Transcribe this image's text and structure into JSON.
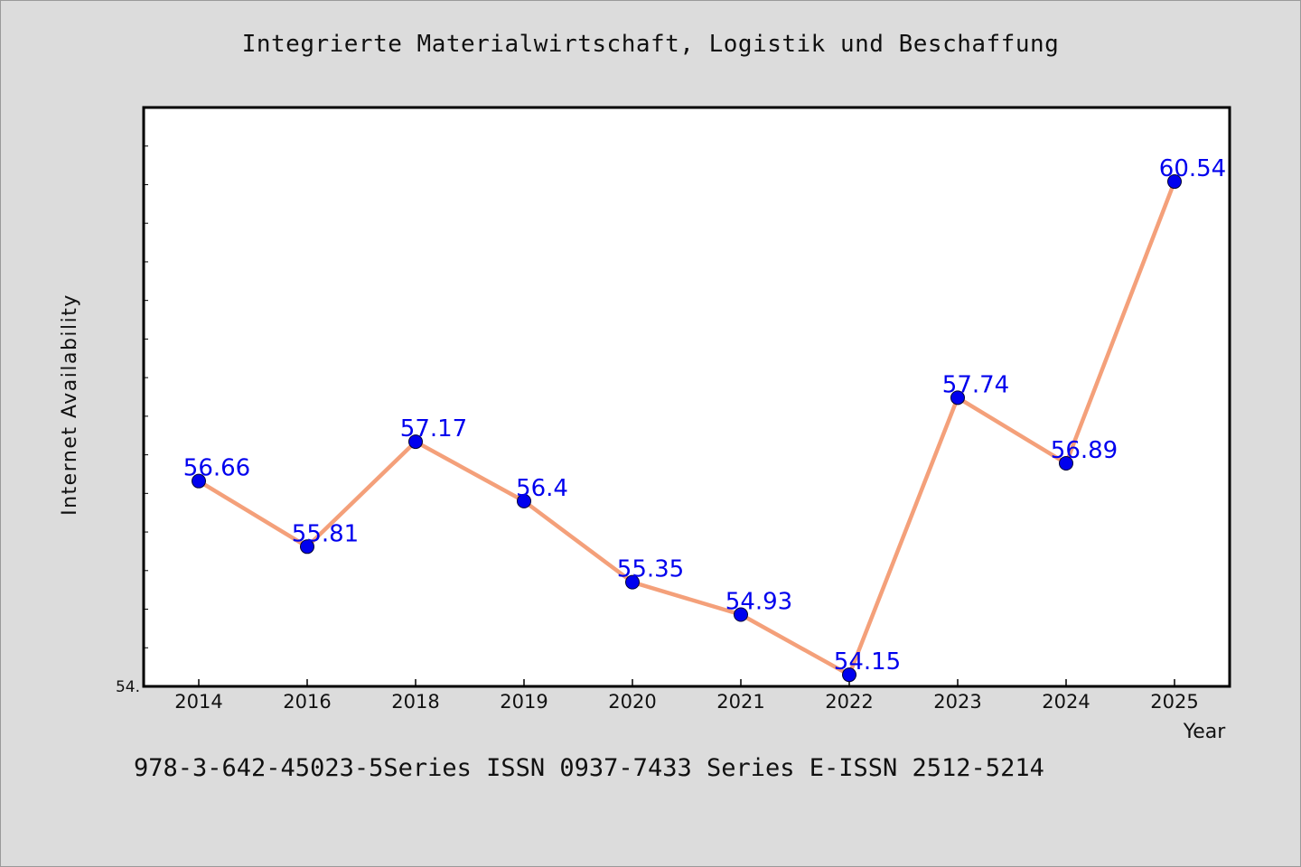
{
  "chart_data": {
    "type": "line",
    "title": "Integrierte Materialwirtschaft, Logistik und Beschaffung",
    "xlabel": "Year",
    "ylabel": "Internet Availability",
    "categories": [
      "2014",
      "2016",
      "2018",
      "2019",
      "2020",
      "2021",
      "2022",
      "2023",
      "2024",
      "2025"
    ],
    "series": [
      {
        "values": [
          56.66,
          55.81,
          57.17,
          56.4,
          55.35,
          54.93,
          54.15,
          57.74,
          56.89,
          60.54
        ]
      }
    ],
    "data_labels": [
      "56.66",
      "55.81",
      "57.17",
      "56.4",
      "55.35",
      "54.93",
      "54.15",
      "57.74",
      "56.89",
      "60.54"
    ],
    "ylim": [
      54.0,
      61.5
    ],
    "y_tick_label": "54.",
    "grid": false,
    "colors": {
      "line": "#f4a07a",
      "marker": "#0000ee",
      "label": "#0000ee",
      "background": "#dcdcdc",
      "plot_bg": "#ffffff"
    }
  },
  "footer": {
    "text": "978-3-642-45023-5Series ISSN 0937-7433 Series E-ISSN 2512-5214"
  }
}
